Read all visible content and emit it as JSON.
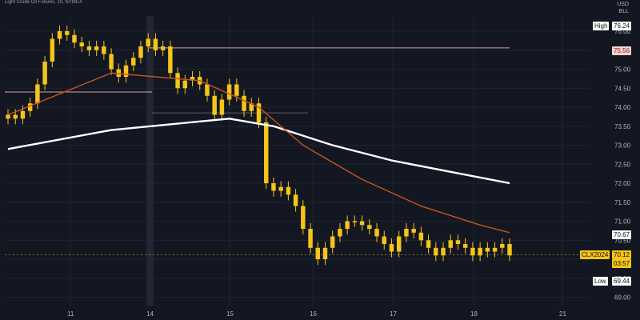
{
  "header": {
    "title": "Light Crude Oil Futures, 1h, NYMEX",
    "currency": "USD",
    "unit": "BLL"
  },
  "colors": {
    "background": "#131722",
    "candle": "#f5c518",
    "ma_slow": "#ffffff",
    "ma_fast": "#c8541f",
    "grid": "#1f2330",
    "axis_text": "#b2b5be",
    "high_tag_bg": "#ffffff",
    "level_tag_bg": "#f7d3cf",
    "current_tag_bg": "#f5c518",
    "low_tag_bg": "#ffffff",
    "value_tag_bg": "#ffffff"
  },
  "tags": {
    "high_label": "High",
    "high_value": "76.24",
    "level_value": "75.56",
    "ma_value": "70.67",
    "symbol": "CLX2024",
    "price": "70.12",
    "countdown": "03:57",
    "low_label": "Low",
    "low_value": "69.44"
  },
  "chart_data": {
    "type": "candlestick",
    "title": "Light Crude Oil Futures, 1h, NYMEX",
    "y_ticks": [
      69.0,
      69.5,
      70.0,
      70.5,
      71.0,
      71.5,
      72.0,
      72.5,
      73.0,
      73.5,
      74.0,
      74.5,
      75.0,
      75.5,
      76.0
    ],
    "ylim": [
      68.78,
      76.4
    ],
    "x_ticks": [
      "11",
      "14",
      "15",
      "16",
      "17",
      "18",
      "21"
    ],
    "grid": true,
    "horizontal_levels": [
      {
        "value": 75.56
      },
      {
        "value": 74.4
      },
      {
        "value": 73.85
      }
    ],
    "close_series": [
      73.8,
      73.7,
      73.9,
      74.1,
      74.6,
      75.2,
      75.8,
      76.0,
      75.9,
      75.7,
      75.6,
      75.5,
      75.6,
      75.4,
      75.0,
      74.8,
      75.1,
      75.3,
      75.6,
      75.8,
      75.5,
      75.6,
      74.9,
      74.5,
      74.7,
      74.8,
      74.6,
      74.3,
      73.8,
      74.2,
      74.6,
      74.3,
      73.9,
      74.1,
      73.6,
      72.0,
      71.8,
      71.9,
      71.7,
      71.4,
      70.8,
      70.3,
      70.0,
      70.3,
      70.6,
      70.8,
      71.0,
      71.0,
      70.9,
      70.8,
      70.6,
      70.4,
      70.2,
      70.6,
      70.8,
      70.7,
      70.5,
      70.3,
      70.1,
      70.3,
      70.5,
      70.4,
      70.3,
      70.1,
      70.3,
      70.2,
      70.3,
      70.4,
      70.1
    ],
    "ma_fast_points": [
      [
        0,
        73.8
      ],
      [
        14,
        74.9
      ],
      [
        26,
        74.7
      ],
      [
        34,
        74.0
      ],
      [
        40,
        73.0
      ],
      [
        48,
        72.1
      ],
      [
        56,
        71.4
      ],
      [
        64,
        70.9
      ],
      [
        68,
        70.7
      ]
    ],
    "ma_slow_points": [
      [
        0,
        72.9
      ],
      [
        14,
        73.4
      ],
      [
        30,
        73.7
      ],
      [
        36,
        73.5
      ],
      [
        44,
        73.0
      ],
      [
        52,
        72.6
      ],
      [
        60,
        72.3
      ],
      [
        68,
        72.0
      ]
    ]
  }
}
